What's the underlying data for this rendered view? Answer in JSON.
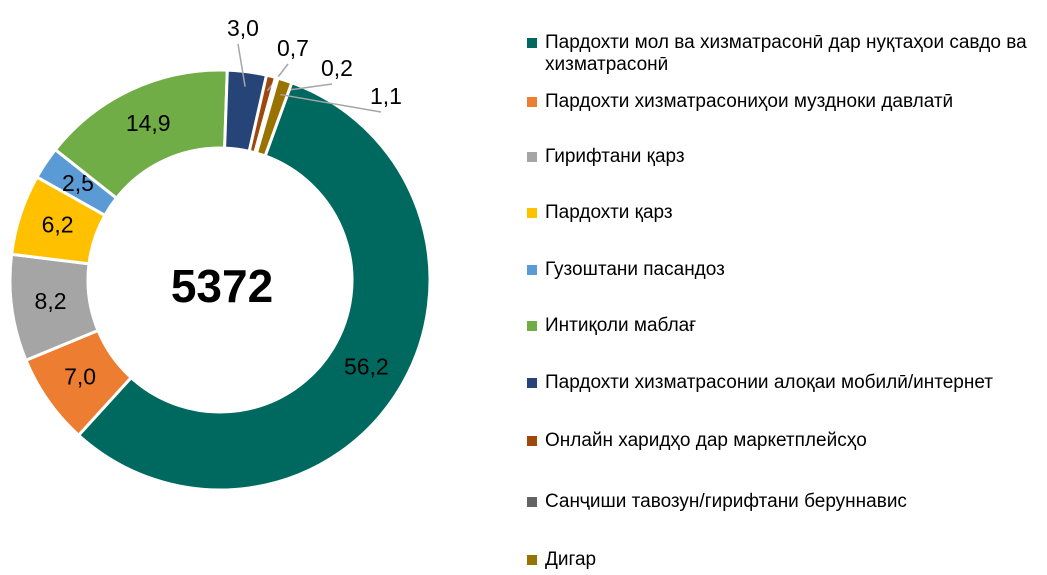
{
  "chart_data": {
    "type": "donut",
    "center_label": "5372",
    "categories": [
      "Пардохти мол ва хизматрасонӣ дар нуқтаҳои савдо ва хизматрасонӣ",
      "Пардохти хизматрасониҳои муздноки давлатӣ",
      "Гирифтани қарз",
      "Пардохти қарз",
      "Гузоштани пасандоз",
      "Интиқоли маблағ",
      "Пардохти хизматрасонии алоқаи мобилӣ/интернет",
      "Онлайн харидҳо дар маркетплейсҳо",
      "Санҷиши тавозун/гирифтани беруннавис",
      "Дигар"
    ],
    "values": [
      56.2,
      7.0,
      8.2,
      6.2,
      2.5,
      14.9,
      3.0,
      0.7,
      0.2,
      1.1
    ],
    "value_labels": [
      "56,2",
      "7,0",
      "8,2",
      "6,2",
      "2,5",
      "14,9",
      "3,0",
      "0,7",
      "0,2",
      "1,1"
    ],
    "colors": [
      "#00695f",
      "#ed7d31",
      "#a5a5a5",
      "#ffc000",
      "#5b9bd5",
      "#70ad47",
      "#264478",
      "#9e480e",
      "#636363",
      "#997300"
    ],
    "legend": "right"
  }
}
